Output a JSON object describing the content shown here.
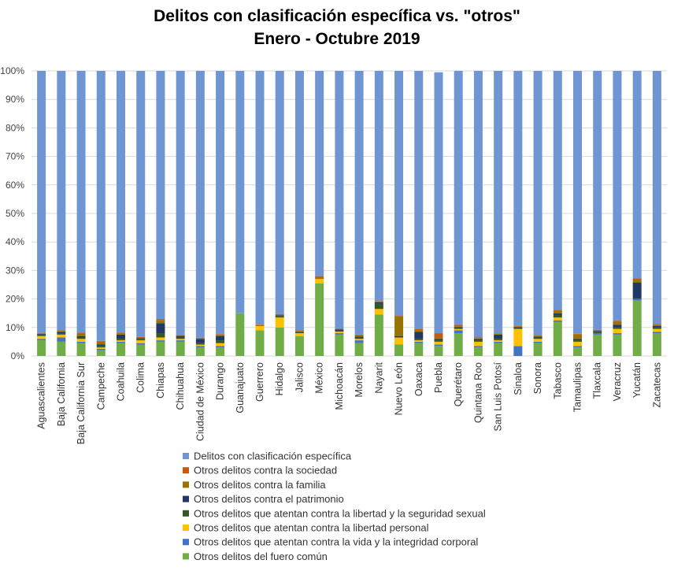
{
  "chart_data": {
    "type": "bar",
    "stacked": "percent",
    "title": "Delitos con clasificación específica vs. \"otros\"",
    "subtitle": "Enero - Octubre 2019",
    "xlabel": "",
    "ylabel": "",
    "ylim": [
      0,
      100
    ],
    "yticks": [
      "0%",
      "10%",
      "20%",
      "30%",
      "40%",
      "50%",
      "60%",
      "70%",
      "80%",
      "90%",
      "100%"
    ],
    "grid": true,
    "legend_position": "bottom",
    "categories": [
      "Aguascalientes",
      "Baja California",
      "Baja California Sur",
      "Campeche",
      "Coahuila",
      "Colima",
      "Chiapas",
      "Chihuahua",
      "Ciudad de México",
      "Durango",
      "Guanajuato",
      "Guerrero",
      "Hidalgo",
      "Jalisco",
      "México",
      "Michoacán",
      "Morelos",
      "Nayarit",
      "Nuevo León",
      "Oaxaca",
      "Puebla",
      "Querétaro",
      "Quintana Roo",
      "San Luis Potosí",
      "Sinaloa",
      "Sonora",
      "Tabasco",
      "Tamaulipas",
      "Tlaxcala",
      "Veracruz",
      "Yucatán",
      "Zacatecas"
    ],
    "series": [
      {
        "name": "Otros delitos del fuero común",
        "color": "#70AD47",
        "values": [
          5.5,
          5,
          4.5,
          2,
          4.5,
          4,
          5,
          5,
          3,
          3,
          15,
          9,
          10,
          7,
          25.5,
          7.5,
          4.5,
          14.5,
          4,
          4.5,
          3.5,
          8,
          3,
          4.5,
          0,
          4.5,
          12,
          3,
          7.5,
          7.5,
          19.5,
          8
        ]
      },
      {
        "name": "Otros delitos que atentan contra la vida y la integridad corporal",
        "color": "#4472C4",
        "values": [
          0.5,
          1.5,
          0.5,
          0.5,
          0.5,
          0.5,
          0.5,
          0.5,
          0.5,
          0.5,
          0,
          0,
          0,
          0,
          0,
          0.5,
          1,
          0,
          0,
          0.5,
          0.5,
          1,
          0.5,
          0.5,
          3.5,
          0.5,
          0.5,
          0.5,
          0.5,
          0.5,
          0.5,
          0.5
        ]
      },
      {
        "name": "Otros delitos que atentan contra la libertad personal",
        "color": "#FFC000",
        "values": [
          1,
          1,
          1,
          0.5,
          0.5,
          1,
          1,
          0.5,
          0.5,
          1,
          0,
          1.5,
          3.5,
          1,
          1.5,
          0.5,
          0.5,
          2,
          2.5,
          0.5,
          1,
          0.5,
          1.5,
          0.5,
          6,
          1,
          1,
          1.5,
          0,
          1.5,
          0,
          1
        ]
      },
      {
        "name": "Otros delitos que atentan contra la libertad y la seguridad sexual",
        "color": "#375623",
        "values": [
          0.5,
          0.5,
          0.5,
          0.5,
          0.5,
          0.5,
          1.5,
          0.5,
          0.5,
          1,
          0,
          0,
          0.5,
          0.3,
          0,
          0.3,
          0.5,
          2,
          0,
          0.5,
          0.5,
          0.3,
          0.5,
          0.5,
          0.3,
          0.5,
          1,
          0.5,
          0.5,
          0.5,
          0.3,
          0.5
        ]
      },
      {
        "name": "Otros delitos contra el patrimonio",
        "color": "#203864",
        "values": [
          0.3,
          0.5,
          0.5,
          0.5,
          1.5,
          0.3,
          3.5,
          0.5,
          1.5,
          1.5,
          0,
          0,
          0.3,
          0.2,
          0,
          0.5,
          0.3,
          0.3,
          0.5,
          2.5,
          0.5,
          0.3,
          0.5,
          1.5,
          0.3,
          0.3,
          0.5,
          0.5,
          0.3,
          1,
          5.5,
          0.5
        ]
      },
      {
        "name": "Otros delitos contra la familia",
        "color": "#997300",
        "values": [
          0.2,
          0.3,
          1,
          1,
          0.5,
          0.2,
          1,
          0.3,
          0.2,
          0.5,
          0,
          0.3,
          0.2,
          0.3,
          0.5,
          0.2,
          0.5,
          0.3,
          7,
          0.5,
          0.5,
          0.3,
          0.3,
          0.3,
          0.2,
          0.3,
          1,
          1.5,
          0.2,
          1,
          1,
          0.5
        ]
      },
      {
        "name": "Otros delitos contra la sociedad",
        "color": "#C55A11",
        "values": [
          0.1,
          0.2,
          0.2,
          0.3,
          0.2,
          0.2,
          0.5,
          0.2,
          0.2,
          0.2,
          0,
          0.2,
          0.2,
          0.2,
          0.5,
          0.2,
          0.2,
          0.2,
          0.2,
          0.5,
          1.5,
          0.5,
          0.2,
          0.2,
          0.2,
          0.2,
          0.2,
          0.3,
          0.2,
          0.3,
          0.5,
          0.2
        ]
      },
      {
        "name": "Delitos con clasificación específica",
        "color": "#7095D3",
        "values": [
          91.9,
          91,
          91.8,
          94.7,
          91.8,
          93.3,
          87,
          92.5,
          93.6,
          92.3,
          85,
          89,
          85.3,
          91,
          72,
          90.3,
          92.5,
          80.7,
          85.8,
          90.5,
          91.5,
          89.1,
          93.5,
          92,
          89.5,
          92.7,
          83.8,
          92.2,
          90.8,
          87.7,
          72.7,
          88.8
        ]
      }
    ]
  }
}
